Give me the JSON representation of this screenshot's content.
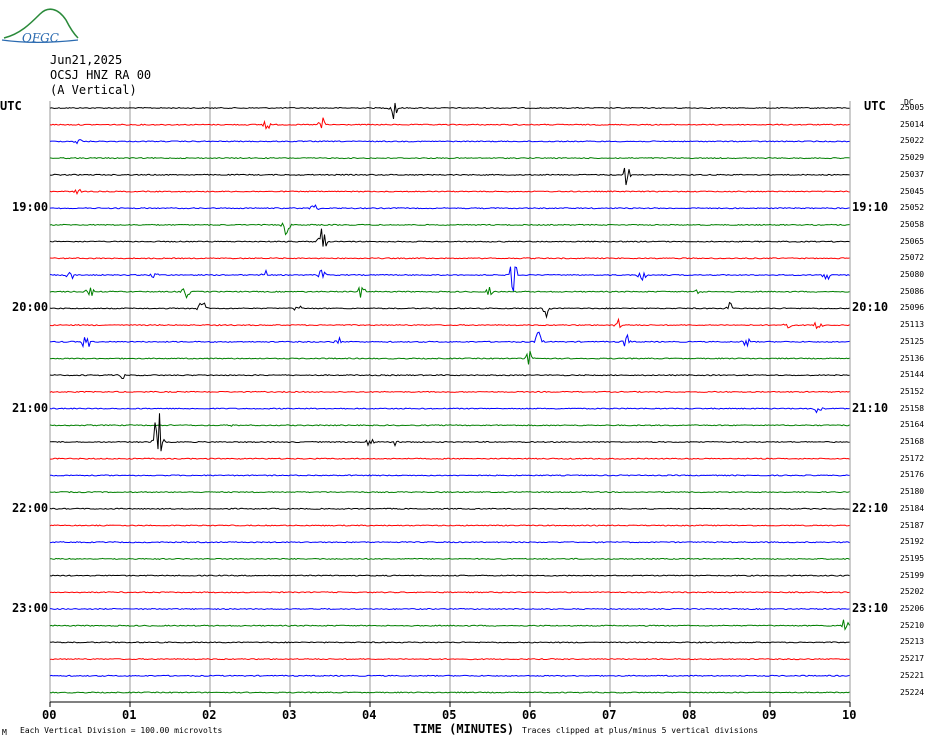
{
  "header": {
    "logo_text": "OFGC",
    "date": "Jun21,2025",
    "station": "OCSJ HNZ RA 00",
    "component": "(A Vertical)"
  },
  "axis": {
    "left_utc_label": "UTC",
    "right_utc_label": "UTC",
    "dc_label": "DC",
    "x_label": "TIME (MINUTES)",
    "x_ticks": [
      "00",
      "01",
      "02",
      "03",
      "04",
      "05",
      "06",
      "07",
      "08",
      "09",
      "10"
    ],
    "left_hours": [
      {
        "label": "19:00",
        "trace": 6
      },
      {
        "label": "20:00",
        "trace": 12
      },
      {
        "label": "21:00",
        "trace": 18
      },
      {
        "label": "22:00",
        "trace": 24
      },
      {
        "label": "23:00",
        "trace": 30
      }
    ],
    "right_hours": [
      {
        "label": "19:10",
        "trace": 6
      },
      {
        "label": "20:10",
        "trace": 12
      },
      {
        "label": "21:10",
        "trace": 18
      },
      {
        "label": "22:10",
        "trace": 24
      },
      {
        "label": "23:10",
        "trace": 30
      }
    ]
  },
  "footer": {
    "scale_note": "Each Vertical Division =  100.00 microvolts",
    "clip_note": "Traces clipped at plus/minus 5 vertical divisions",
    "corner_mark": "M"
  },
  "chart_data": {
    "type": "line",
    "x_range_minutes": [
      0,
      10
    ],
    "color_cycle": [
      "#000000",
      "#ff0000",
      "#0000ff",
      "#007f00"
    ],
    "traces": [
      {
        "dc": "25005",
        "color": "#000000",
        "events": [
          [
            4.3,
            14
          ]
        ]
      },
      {
        "dc": "25014",
        "color": "#ff0000",
        "events": [
          [
            2.7,
            8
          ],
          [
            3.4,
            8
          ]
        ]
      },
      {
        "dc": "25022",
        "color": "#0000ff",
        "events": [
          [
            0.35,
            4
          ]
        ]
      },
      {
        "dc": "25029",
        "color": "#007f00",
        "events": []
      },
      {
        "dc": "25037",
        "color": "#000000",
        "events": [
          [
            7.2,
            12
          ]
        ]
      },
      {
        "dc": "25045",
        "color": "#ff0000",
        "events": [
          [
            0.35,
            3
          ]
        ]
      },
      {
        "dc": "25052",
        "color": "#0000ff",
        "events": [
          [
            3.3,
            6
          ]
        ]
      },
      {
        "dc": "25058",
        "color": "#007f00",
        "events": [
          [
            2.95,
            10
          ]
        ]
      },
      {
        "dc": "25065",
        "color": "#000000",
        "events": [
          [
            3.4,
            18
          ]
        ]
      },
      {
        "dc": "25072",
        "color": "#ff0000",
        "events": []
      },
      {
        "dc": "25080",
        "color": "#0000ff",
        "events": [
          [
            0.25,
            6
          ],
          [
            1.3,
            5
          ],
          [
            2.7,
            5
          ],
          [
            3.4,
            6
          ],
          [
            5.8,
            22
          ],
          [
            7.4,
            8
          ],
          [
            9.7,
            8
          ]
        ]
      },
      {
        "dc": "25086",
        "color": "#007f00",
        "events": [
          [
            0.5,
            6
          ],
          [
            1.7,
            7
          ],
          [
            3.9,
            8
          ],
          [
            5.5,
            5
          ],
          [
            8.1,
            4
          ]
        ]
      },
      {
        "dc": "25096",
        "color": "#000000",
        "events": [
          [
            1.9,
            10
          ],
          [
            3.1,
            5
          ],
          [
            6.2,
            9
          ],
          [
            8.5,
            6
          ]
        ]
      },
      {
        "dc": "25113",
        "color": "#ff0000",
        "events": [
          [
            7.1,
            6
          ],
          [
            9.2,
            8
          ],
          [
            9.6,
            6
          ]
        ]
      },
      {
        "dc": "25125",
        "color": "#0000ff",
        "events": [
          [
            0.45,
            10
          ],
          [
            3.6,
            5
          ],
          [
            6.1,
            12
          ],
          [
            7.2,
            8
          ],
          [
            8.7,
            6
          ]
        ]
      },
      {
        "dc": "25136",
        "color": "#007f00",
        "events": [
          [
            6.0,
            10
          ]
        ]
      },
      {
        "dc": "25144",
        "color": "#000000",
        "events": [
          [
            0.9,
            4
          ]
        ]
      },
      {
        "dc": "25152",
        "color": "#ff0000",
        "events": []
      },
      {
        "dc": "25158",
        "color": "#0000ff",
        "events": [
          [
            9.6,
            5
          ]
        ]
      },
      {
        "dc": "25164",
        "color": "#007f00",
        "events": [
          [
            2.3,
            2
          ]
        ]
      },
      {
        "dc": "25168",
        "color": "#000000",
        "events": [
          [
            1.35,
            40
          ],
          [
            4.0,
            6
          ],
          [
            4.3,
            4
          ]
        ]
      },
      {
        "dc": "25172",
        "color": "#ff0000",
        "events": []
      },
      {
        "dc": "25176",
        "color": "#0000ff",
        "events": []
      },
      {
        "dc": "25180",
        "color": "#007f00",
        "events": []
      },
      {
        "dc": "25184",
        "color": "#000000",
        "events": []
      },
      {
        "dc": "25187",
        "color": "#ff0000",
        "events": []
      },
      {
        "dc": "25192",
        "color": "#0000ff",
        "events": []
      },
      {
        "dc": "25195",
        "color": "#007f00",
        "events": []
      },
      {
        "dc": "25199",
        "color": "#000000",
        "events": []
      },
      {
        "dc": "25202",
        "color": "#ff0000",
        "events": []
      },
      {
        "dc": "25206",
        "color": "#0000ff",
        "events": []
      },
      {
        "dc": "25210",
        "color": "#007f00",
        "events": [
          [
            9.95,
            12
          ]
        ]
      },
      {
        "dc": "25213",
        "color": "#000000",
        "events": []
      },
      {
        "dc": "25217",
        "color": "#ff0000",
        "events": []
      },
      {
        "dc": "25221",
        "color": "#0000ff",
        "events": []
      },
      {
        "dc": "25224",
        "color": "#007f00",
        "events": []
      }
    ]
  }
}
